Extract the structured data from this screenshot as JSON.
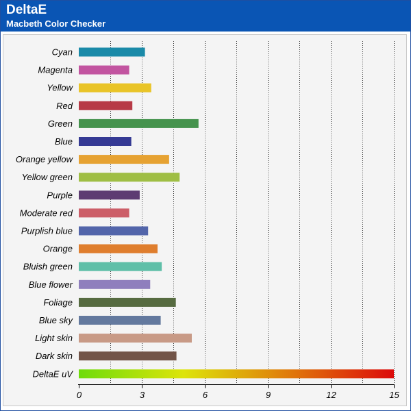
{
  "header": {
    "title": "DeltaE",
    "subtitle": "Macbeth Color Checker"
  },
  "chart_data": {
    "type": "bar",
    "orientation": "horizontal",
    "title": "DeltaE",
    "subtitle": "Macbeth Color Checker",
    "xlim": [
      0,
      15
    ],
    "xticks": [
      0,
      3,
      6,
      9,
      12,
      15
    ],
    "grid": "vertical dotted",
    "categories": [
      "Cyan",
      "Magenta",
      "Yellow",
      "Red",
      "Green",
      "Blue",
      "Orange yellow",
      "Yellow green",
      "Purple",
      "Moderate red",
      "Purplish blue",
      "Orange",
      "Bluish green",
      "Blue flower",
      "Foliage",
      "Blue sky",
      "Light skin",
      "Dark skin",
      "DeltaE uV"
    ],
    "values": [
      3.15,
      2.4,
      3.45,
      2.55,
      5.7,
      2.5,
      4.3,
      4.8,
      2.9,
      2.4,
      3.3,
      3.75,
      3.95,
      3.4,
      4.62,
      3.9,
      5.38,
      4.65,
      15.0
    ],
    "colors": [
      "#1a8aa8",
      "#c254a0",
      "#e9c427",
      "#b73a46",
      "#45934d",
      "#353a94",
      "#e6a232",
      "#9fbe44",
      "#5e3c72",
      "#cc5e68",
      "#5265aa",
      "#df7e2e",
      "#5fbfa8",
      "#8f7fbd",
      "#566b40",
      "#63799e",
      "#c89a86",
      "#725448",
      "gradient"
    ],
    "gradient_stops": [
      "#6edc0a",
      "#dde40a",
      "#e07a0a",
      "#dc0a0a"
    ]
  }
}
